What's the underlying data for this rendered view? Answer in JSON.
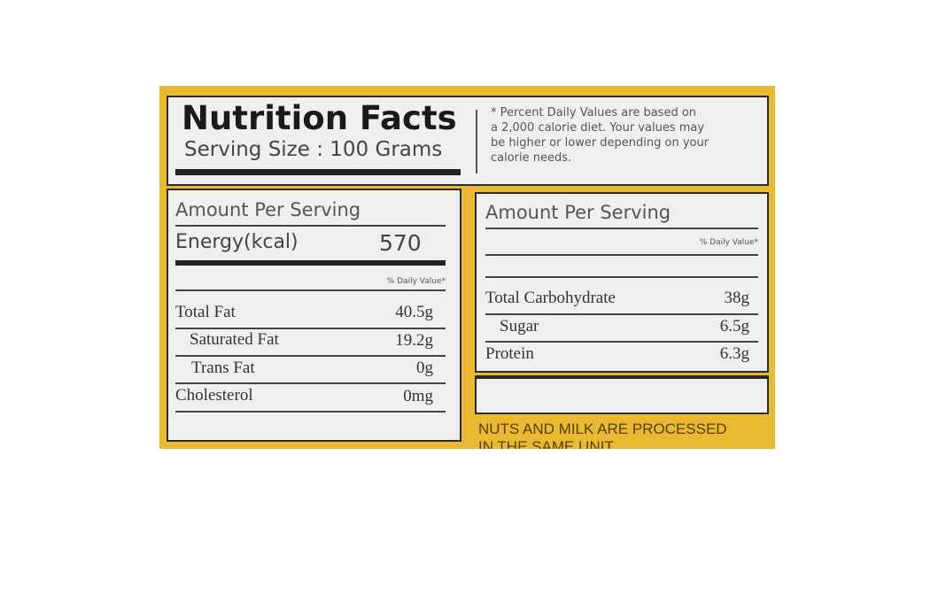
{
  "header": {
    "title": "Nutrition Facts",
    "serving_size": "Serving Size : 100 Grams",
    "footnote": [
      "* Percent Daily Values are based on",
      "a 2,000 calorie diet. Your values may",
      "be higher or lower depending on your",
      "calorie needs."
    ]
  },
  "left_panel": {
    "amount_per_serving": "Amount Per Serving",
    "energy_label": "Energy(kcal)",
    "energy_value": "570",
    "daily_value_header": "% Daily Value*",
    "rows": [
      {
        "label": "Total Fat",
        "value": "40.5g"
      },
      {
        "label": "Saturated Fat",
        "value": "19.2g"
      },
      {
        "label": "Trans Fat",
        "value": "0g"
      },
      {
        "label": "Cholesterol",
        "value": "0mg"
      }
    ]
  },
  "right_panel": {
    "amount_per_serving": "Amount Per Serving",
    "daily_value_header": "% Daily Value*",
    "rows": [
      {
        "label": "Total Carbohydrate",
        "value": "38g"
      },
      {
        "label": "Sugar",
        "value": "6.5g"
      },
      {
        "label": "Protein",
        "value": "6.3g"
      }
    ]
  },
  "allergen_note": [
    "NUTS AND MILK ARE PROCESSED",
    "IN THE SAME UNIT"
  ],
  "colors": {
    "background": "#e9b931",
    "panel": "#efefee",
    "ink": "#2b2b2b",
    "note": "#5a3e00"
  }
}
